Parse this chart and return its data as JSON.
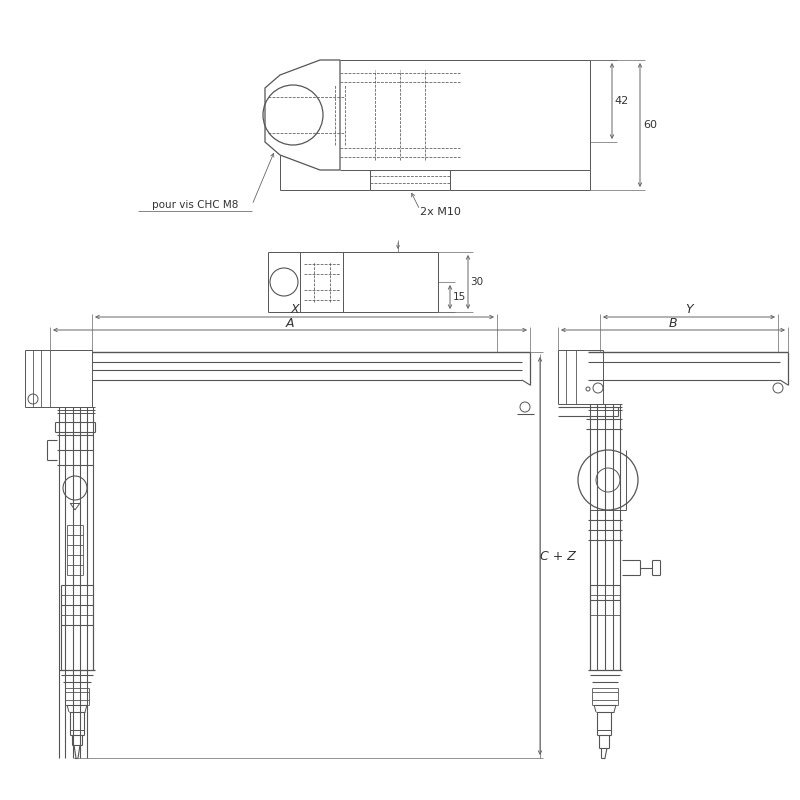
{
  "bg_color": "#ffffff",
  "line_color": "#555555",
  "dim_color": "#666666",
  "text_color": "#333333",
  "label_42": "42",
  "label_60": "60",
  "label_2xM10": "2x M10",
  "label_pour_vis": "pour vis CHC M8",
  "label_15": "15",
  "label_30": "30",
  "label_A": "A",
  "label_X": "X",
  "label_B": "B",
  "label_Y": "Y",
  "label_CZ": "C + Z",
  "fig_width": 8.0,
  "fig_height": 8.0,
  "dpi": 100
}
